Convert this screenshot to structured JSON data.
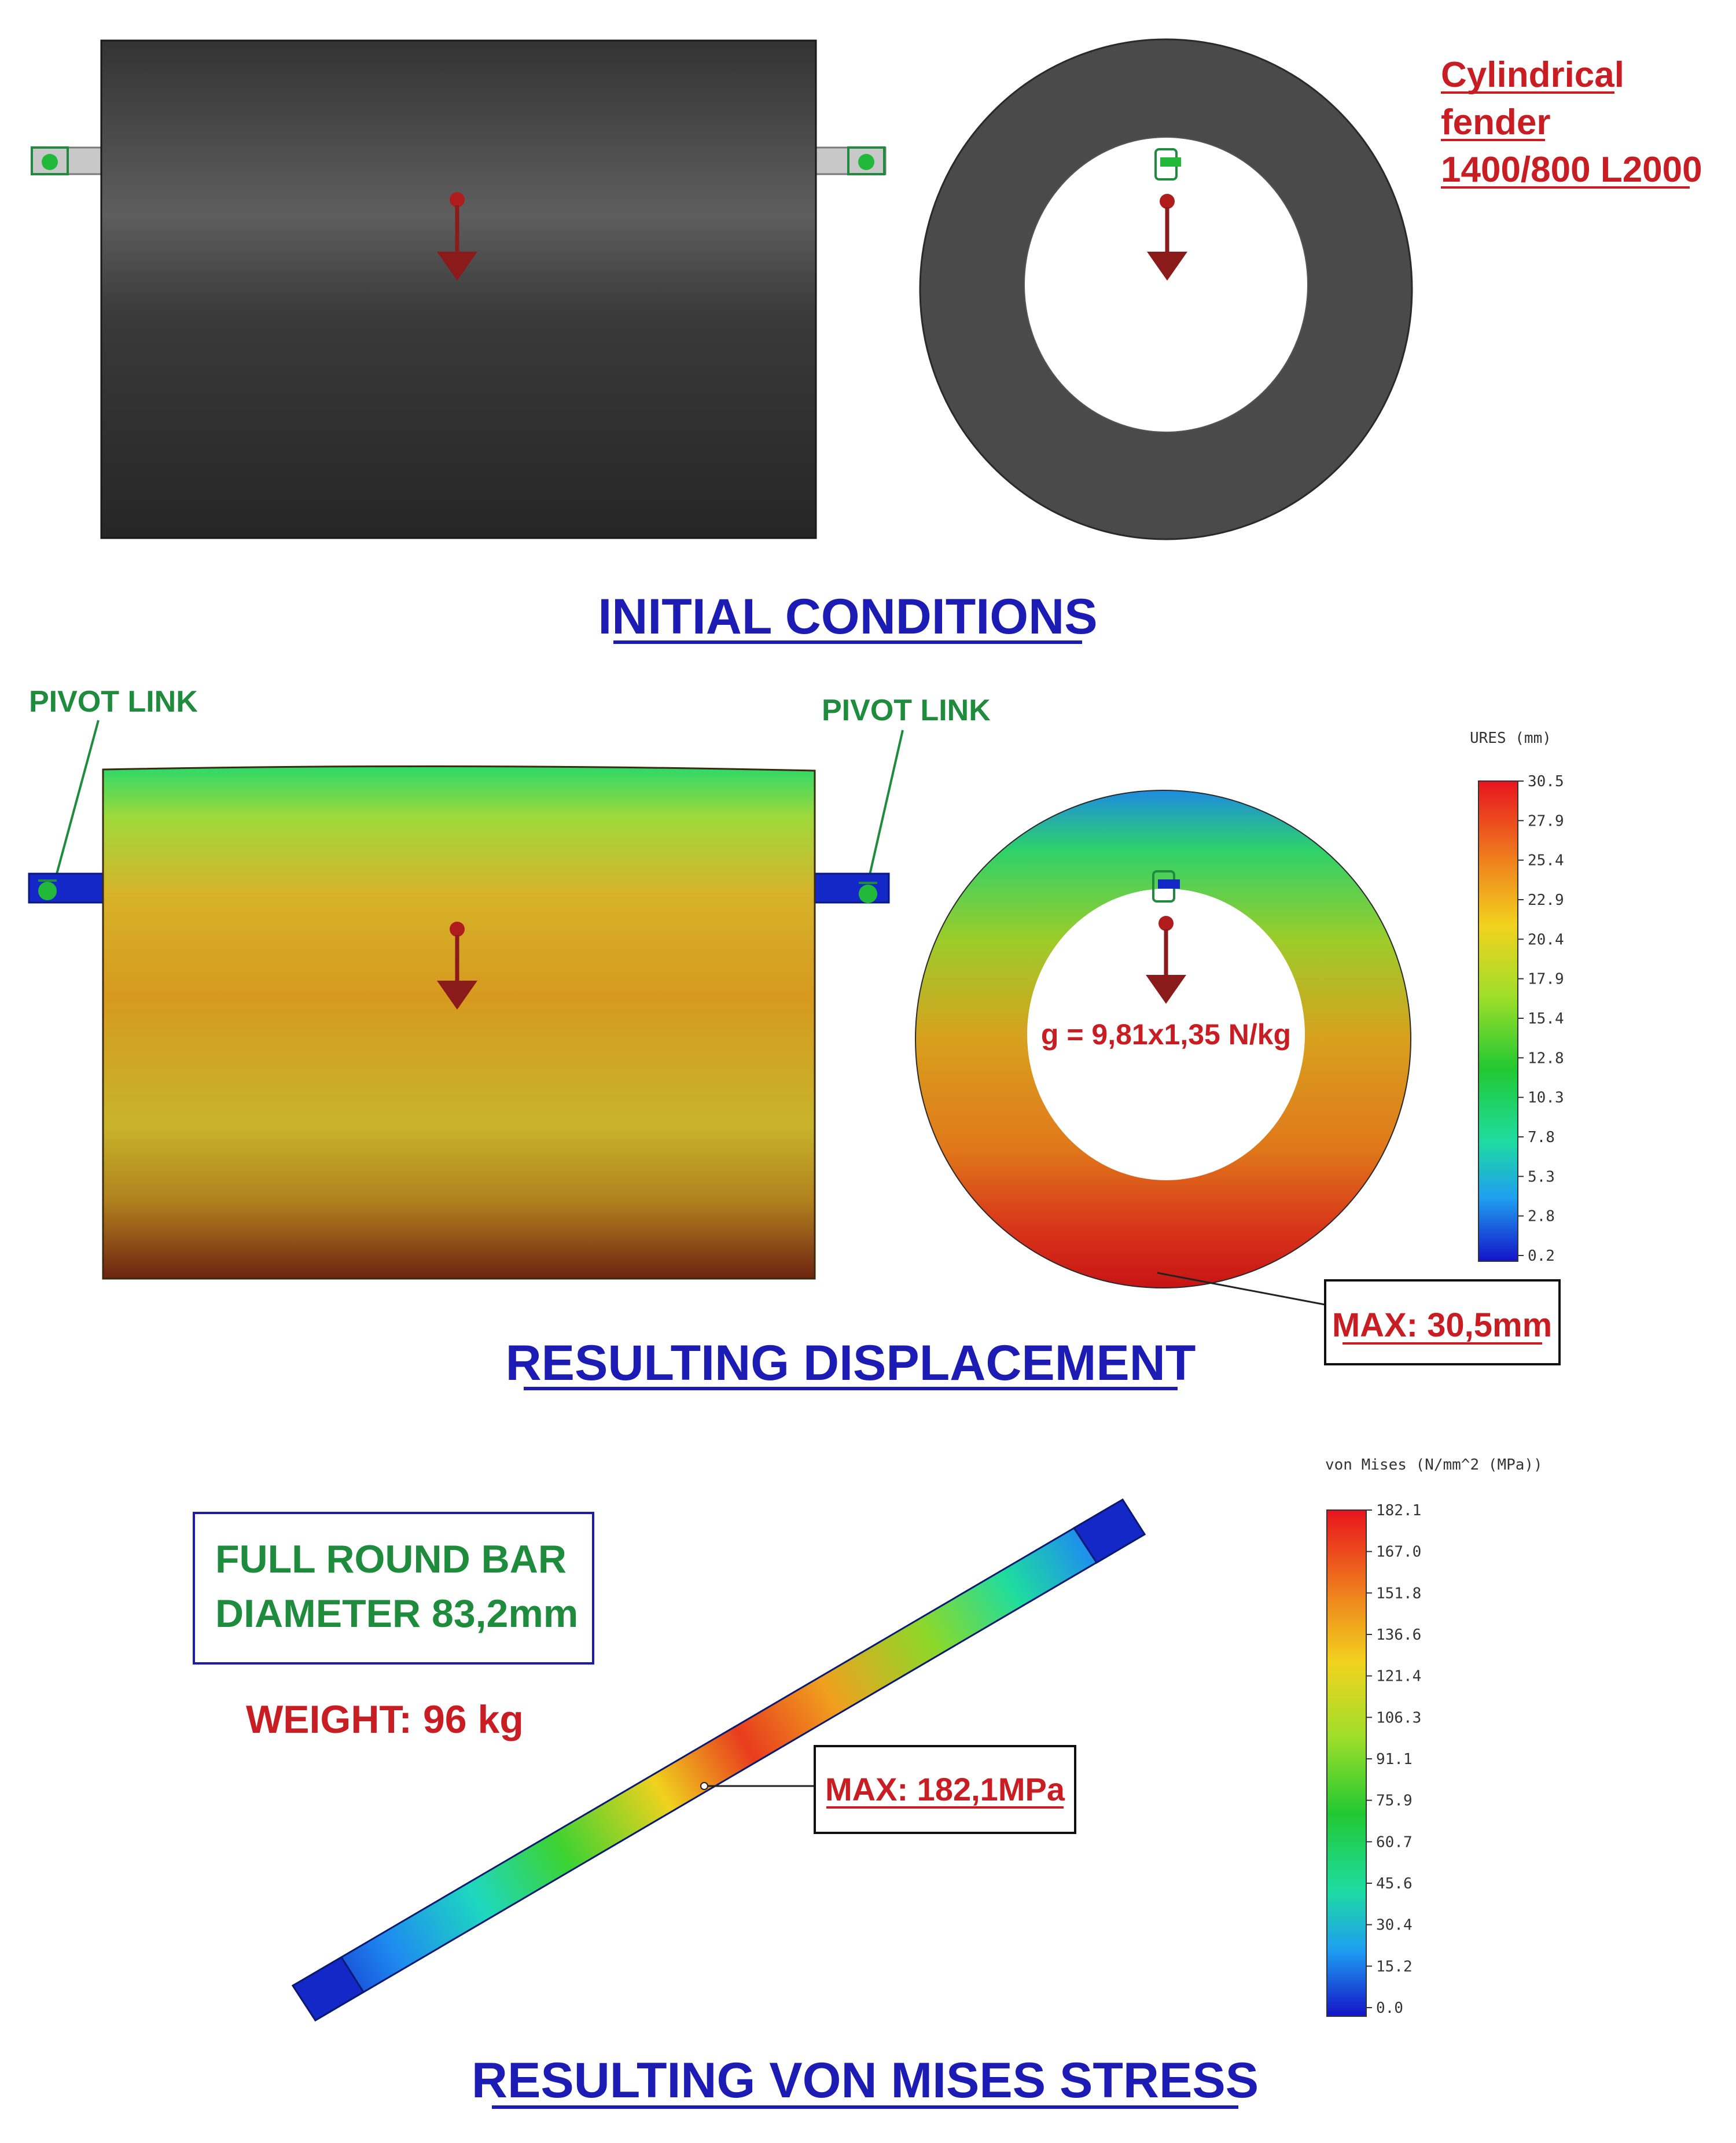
{
  "fender_label": [
    "Cylindrical",
    "fender",
    "1400/800 L2000"
  ],
  "sections": {
    "initial": "INITIAL CONDITIONS",
    "displacement": "RESULTING DISPLACEMENT",
    "stress": "RESULTING VON MISES STRESS"
  },
  "pivot_link_label": "PIVOT LINK",
  "gravity_label": "g = 9,81x1,35 N/kg",
  "max_displacement_label": "MAX: 30,5mm",
  "max_stress_label": "MAX: 182,1MPa",
  "bar_info": [
    "FULL ROUND BAR",
    "DIAMETER 83,2mm"
  ],
  "weight_label": "WEIGHT: 96 kg",
  "displacement_legend": {
    "title": "URES (mm)",
    "ticks": [
      "30.5",
      "27.9",
      "25.4",
      "22.9",
      "20.4",
      "17.9",
      "15.4",
      "12.8",
      "10.3",
      "7.8",
      "5.3",
      "2.8",
      "0.2"
    ]
  },
  "stress_legend": {
    "title": "von Mises (N/mm^2 (MPa))",
    "ticks": [
      "182.1",
      "167.0",
      "151.8",
      "136.6",
      "121.4",
      "106.3",
      "91.1",
      "75.9",
      "60.7",
      "45.6",
      "30.4",
      "15.2",
      "0.0"
    ]
  },
  "colors": {
    "title_blue": "#1c1cb4",
    "label_red": "#c81e23",
    "label_green": "#1e8c3c",
    "arrow": "#8b1a1a",
    "fender_dark": "#3a3a3a"
  }
}
